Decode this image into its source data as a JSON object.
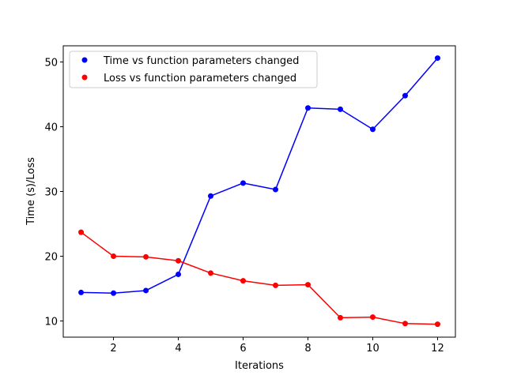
{
  "chart_data": {
    "type": "line",
    "title": "",
    "xlabel": "Iterations",
    "ylabel": "Time (s)/Loss",
    "xlim": [
      0.45,
      12.55
    ],
    "ylim": [
      7.5,
      52.5
    ],
    "xticks": [
      2,
      4,
      6,
      8,
      10,
      12
    ],
    "yticks": [
      10,
      20,
      30,
      40,
      50
    ],
    "grid": false,
    "legend_position": "upper-left",
    "x": [
      1,
      2,
      3,
      4,
      5,
      6,
      7,
      8,
      9,
      10,
      11,
      12
    ],
    "series": [
      {
        "name": "Time vs function parameters changed",
        "color": "#0000ff",
        "values": [
          14.4,
          14.3,
          14.7,
          17.2,
          29.3,
          31.3,
          30.3,
          42.9,
          42.7,
          39.6,
          44.8,
          50.6
        ]
      },
      {
        "name": "Loss vs function parameters changed",
        "color": "#ff0000",
        "values": [
          23.7,
          20.0,
          19.9,
          19.3,
          17.4,
          16.2,
          15.5,
          15.6,
          10.5,
          10.6,
          9.6,
          9.5
        ]
      }
    ]
  }
}
